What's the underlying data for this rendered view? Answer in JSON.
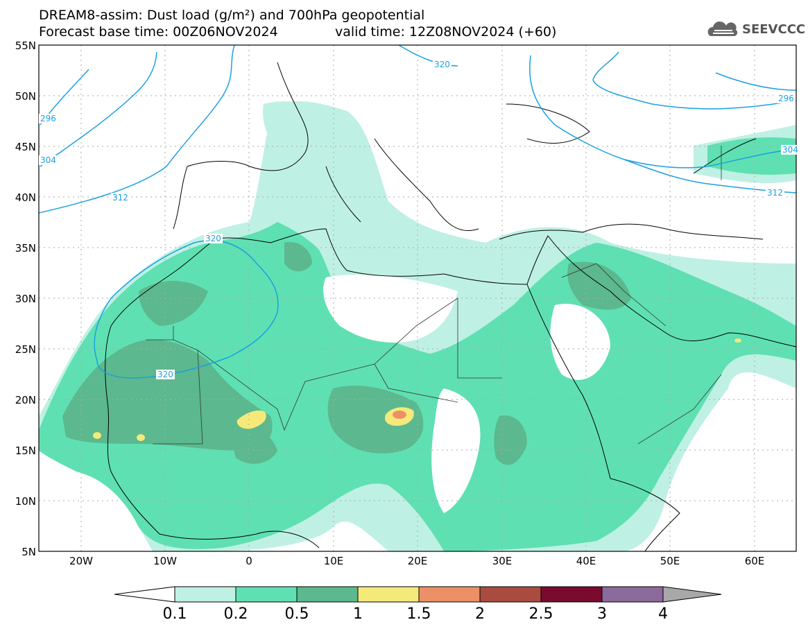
{
  "header": {
    "title_line1": "DREAM8-assim: Dust load (g/m²) and 700hPa geopotential",
    "title_line2": "Forecast base time: 00Z06NOV2024",
    "valid_time": "valid time: 12Z08NOV2024 (+60)",
    "logo_text": "SEEVCCC",
    "logo_icon": "cloud-icon"
  },
  "map": {
    "lat_labels": [
      "55N",
      "50N",
      "45N",
      "40N",
      "35N",
      "30N",
      "25N",
      "20N",
      "15N",
      "10N",
      "5N"
    ],
    "lon_labels": [
      "20W",
      "10W",
      "0",
      "10E",
      "20E",
      "30E",
      "40E",
      "50E",
      "60E"
    ],
    "contour_labels": [
      "320",
      "320",
      "312",
      "304",
      "296",
      "320",
      "296",
      "304",
      "312"
    ],
    "contour_color": "#1ba0e0"
  },
  "colorbar": {
    "labels": [
      "0.1",
      "0.2",
      "0.5",
      "1",
      "1.5",
      "2",
      "2.5",
      "3",
      "4"
    ],
    "colors": [
      "#ffffff",
      "#bff0e4",
      "#5fe0b2",
      "#5cb88e",
      "#f5e97a",
      "#ec9067",
      "#aa4b40",
      "#7a0a2e",
      "#8c6a9c",
      "#a8a8a8"
    ]
  }
}
